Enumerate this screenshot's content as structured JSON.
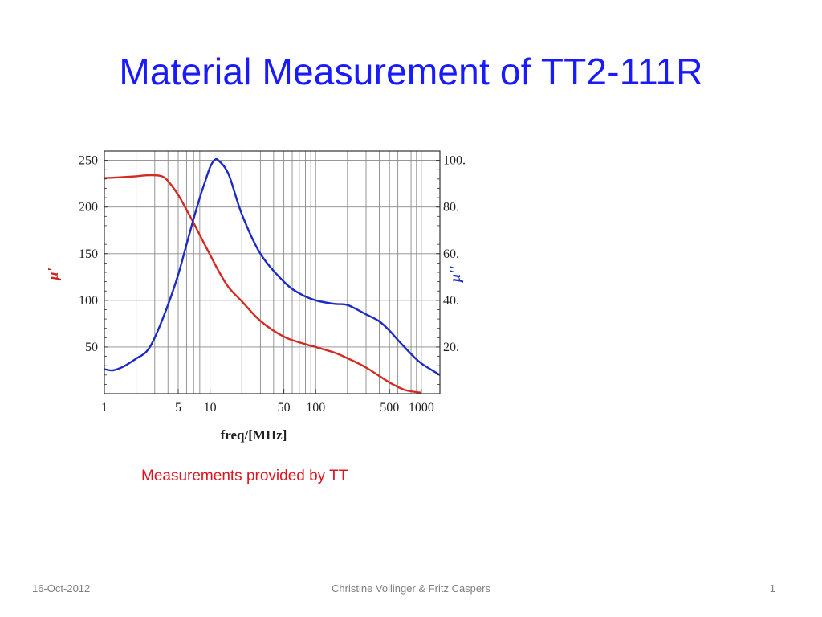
{
  "slide": {
    "title": "Material Measurement of TT2-111R",
    "caption": "Measurements provided by TT",
    "footer_date": "16-Oct-2012",
    "footer_authors": "Christine Vollinger & Fritz Caspers",
    "page_number": "1"
  },
  "colors": {
    "title": "#1a1aff",
    "caption": "#e0141e",
    "series_mu_prime": "#d42a22",
    "series_mu_double_prime": "#1c2bc4"
  },
  "chart_data": {
    "type": "line",
    "xlabel": "freq/[MHz]",
    "ylabel_left": "μ'",
    "ylabel_right": "μ''",
    "xscale": "log",
    "xlim": [
      1,
      1500
    ],
    "ylim_left": [
      0,
      260
    ],
    "ylim_right": [
      0,
      104
    ],
    "x_ticks": [
      {
        "value": 1,
        "label": "1"
      },
      {
        "value": 5,
        "label": "5"
      },
      {
        "value": 10,
        "label": "10"
      },
      {
        "value": 50,
        "label": "50"
      },
      {
        "value": 100,
        "label": "100"
      },
      {
        "value": 500,
        "label": "500"
      },
      {
        "value": 1000,
        "label": "1000"
      }
    ],
    "y_ticks_left": [
      50,
      100,
      150,
      200,
      250
    ],
    "y_ticks_right": [
      {
        "value": 20,
        "label": "20."
      },
      {
        "value": 40,
        "label": "40."
      },
      {
        "value": 60,
        "label": "60."
      },
      {
        "value": 80,
        "label": "80."
      },
      {
        "value": 100,
        "label": "100."
      }
    ],
    "grid": true,
    "series": [
      {
        "axis": "left",
        "color": "#d42a22",
        "x": [
          1,
          1.5,
          2,
          2.5,
          3,
          3.5,
          4,
          5,
          6,
          7,
          8,
          10,
          12,
          15,
          20,
          30,
          50,
          80,
          100,
          150,
          200,
          300,
          500,
          700,
          1000
        ],
        "values": [
          231,
          232,
          233,
          234,
          234,
          233,
          228,
          213,
          197,
          183,
          170,
          149,
          132,
          114,
          99,
          78,
          61,
          53,
          50,
          44,
          38,
          28,
          12,
          4,
          1
        ]
      },
      {
        "axis": "right",
        "color": "#1c2bc4",
        "x": [
          1,
          1.2,
          1.5,
          2,
          2.5,
          3,
          4,
          5,
          6,
          7,
          8,
          9,
          10,
          11,
          12,
          15,
          20,
          30,
          50,
          70,
          100,
          150,
          200,
          300,
          400,
          500,
          600,
          800,
          1000,
          1500
        ],
        "values": [
          10.5,
          10,
          11.5,
          15,
          18,
          24,
          38,
          51,
          64,
          75,
          84,
          91,
          97,
          100,
          100,
          94,
          77,
          60,
          48,
          43,
          40,
          38.5,
          38,
          34,
          31,
          27,
          23,
          17,
          13,
          8
        ]
      }
    ]
  }
}
